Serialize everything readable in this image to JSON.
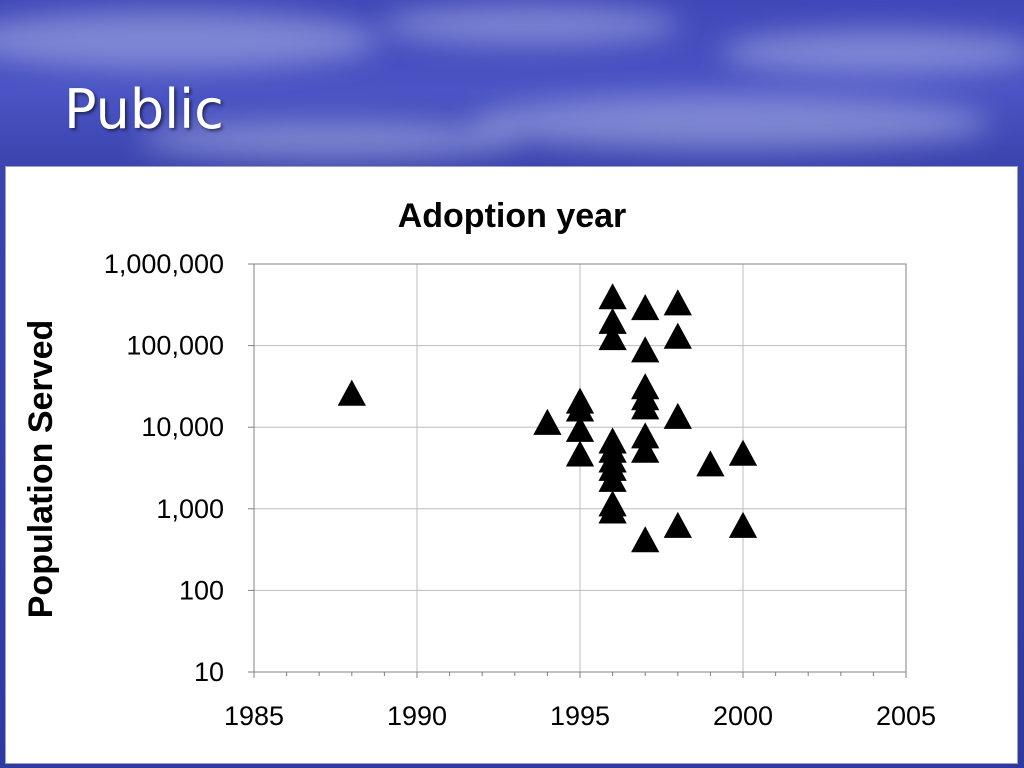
{
  "slide": {
    "title": "Public"
  },
  "chart_data": {
    "type": "scatter",
    "title": "Adoption year",
    "xlabel": "",
    "ylabel": "Population Served",
    "x_scale": "linear",
    "y_scale": "log",
    "xlim": [
      1985,
      2005
    ],
    "ylim": [
      10,
      1000000
    ],
    "x_ticks": [
      1985,
      1990,
      1995,
      2000,
      2005
    ],
    "x_tick_labels": [
      "1985",
      "1990",
      "1995",
      "2000",
      "2005"
    ],
    "y_ticks": [
      10,
      100,
      1000,
      10000,
      100000,
      1000000
    ],
    "y_tick_labels": [
      "10",
      "100",
      "1,000",
      "10,000",
      "100,000",
      "1,000,000"
    ],
    "grid": "vertical and horizontal major gridlines",
    "marker": "filled black triangle",
    "points": [
      {
        "x": 1988,
        "y": 25000
      },
      {
        "x": 1994,
        "y": 11000
      },
      {
        "x": 1995,
        "y": 20000
      },
      {
        "x": 1995,
        "y": 16000
      },
      {
        "x": 1995,
        "y": 9000
      },
      {
        "x": 1995,
        "y": 4500
      },
      {
        "x": 1996,
        "y": 380000
      },
      {
        "x": 1996,
        "y": 190000
      },
      {
        "x": 1996,
        "y": 120000
      },
      {
        "x": 1996,
        "y": 6500
      },
      {
        "x": 1996,
        "y": 5000
      },
      {
        "x": 1996,
        "y": 3800
      },
      {
        "x": 1996,
        "y": 3000
      },
      {
        "x": 1996,
        "y": 2200
      },
      {
        "x": 1996,
        "y": 1100
      },
      {
        "x": 1996,
        "y": 900
      },
      {
        "x": 1997,
        "y": 280000
      },
      {
        "x": 1997,
        "y": 85000
      },
      {
        "x": 1997,
        "y": 30000
      },
      {
        "x": 1997,
        "y": 22000
      },
      {
        "x": 1997,
        "y": 17000
      },
      {
        "x": 1997,
        "y": 7500
      },
      {
        "x": 1997,
        "y": 5000
      },
      {
        "x": 1997,
        "y": 400
      },
      {
        "x": 1998,
        "y": 320000
      },
      {
        "x": 1998,
        "y": 125000
      },
      {
        "x": 1998,
        "y": 13000
      },
      {
        "x": 1998,
        "y": 600
      },
      {
        "x": 1999,
        "y": 3400
      },
      {
        "x": 2000,
        "y": 4600
      },
      {
        "x": 2000,
        "y": 600
      }
    ]
  }
}
